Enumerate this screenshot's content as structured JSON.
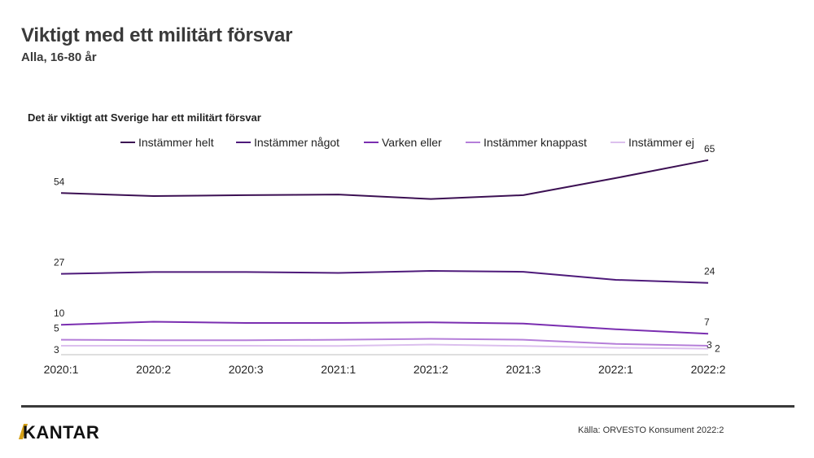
{
  "title": "Viktigt med ett militärt försvar",
  "subtitle": "Alla, 16-80 år",
  "source": "Källa: ORVESTO Konsument 2022:2",
  "logo": "KANTAR",
  "chart_data": {
    "type": "line",
    "title": "Det är viktigt att Sverige har ett militärt försvar",
    "categories": [
      "2020:1",
      "2020:2",
      "2020:3",
      "2021:1",
      "2021:2",
      "2021:3",
      "2022:1",
      "2022:2"
    ],
    "ylim": [
      0,
      70
    ],
    "grid": false,
    "legend_position": "top",
    "series": [
      {
        "name": "Instämmer helt",
        "color": "#3c1053",
        "values": [
          54,
          53,
          53.3,
          53.5,
          52,
          53.3,
          59,
          65
        ],
        "labels": [
          "54",
          "",
          "",
          "",
          "",
          "",
          "",
          "65"
        ]
      },
      {
        "name": "Instämmer något",
        "color": "#4e1a7a",
        "values": [
          27,
          27.6,
          27.6,
          27.3,
          28,
          27.7,
          25,
          24
        ],
        "labels": [
          "27",
          "",
          "",
          "",
          "",
          "",
          "",
          "24"
        ]
      },
      {
        "name": "Varken eller",
        "color": "#7a2eb0",
        "values": [
          10,
          11,
          10.6,
          10.6,
          10.8,
          10.4,
          8.5,
          7
        ],
        "labels": [
          "10",
          "",
          "",
          "",
          "",
          "",
          "",
          "7"
        ]
      },
      {
        "name": "Instämmer knappast",
        "color": "#b57ed9",
        "values": [
          5,
          4.8,
          4.8,
          5,
          5.3,
          5,
          3.6,
          3
        ],
        "labels": [
          "5",
          "",
          "",
          "",
          "",
          "",
          "",
          "3"
        ]
      },
      {
        "name": "Instämmer ej",
        "color": "#dcc0ee",
        "values": [
          3,
          3,
          3,
          2.9,
          3.4,
          2.9,
          2.3,
          2
        ],
        "labels": [
          "3",
          "",
          "",
          "",
          "",
          "",
          "",
          "2"
        ]
      }
    ]
  }
}
